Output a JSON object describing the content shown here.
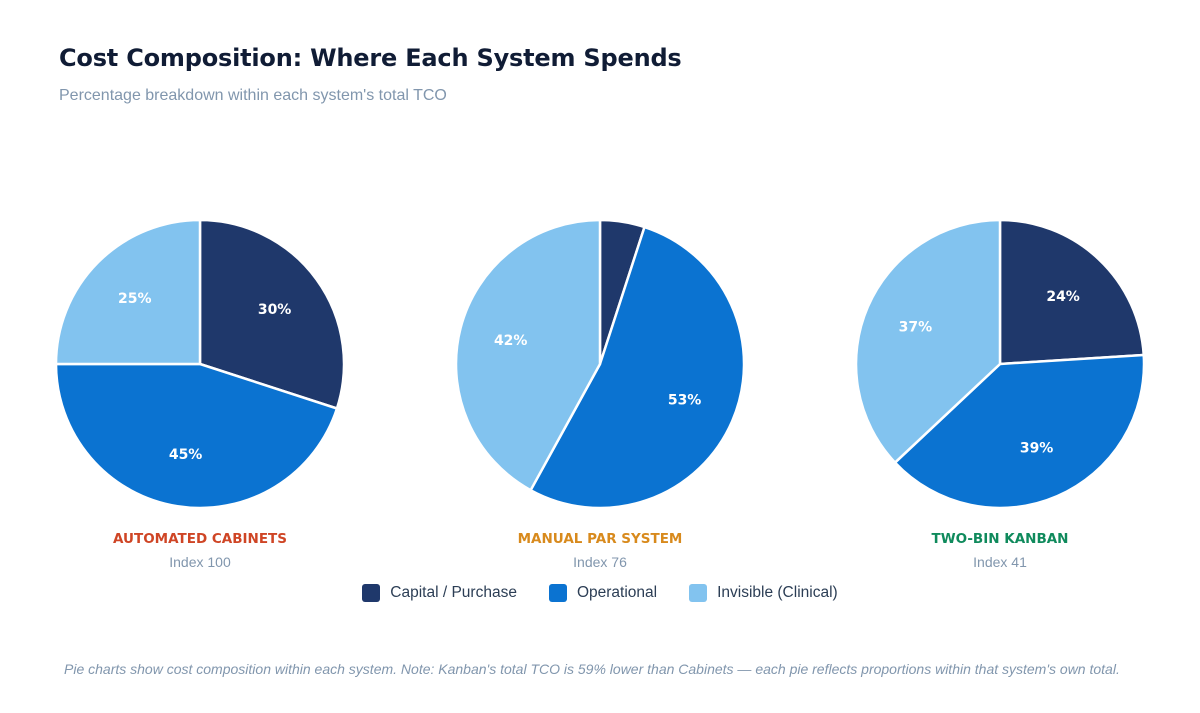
{
  "header": {
    "title": "Cost Composition: Where Each System Spends",
    "subtitle": "Percentage breakdown within each system's total TCO"
  },
  "colors": {
    "capital": "#1f386b",
    "operational": "#0b73d1",
    "invisible": "#82c3ef",
    "automated": "#cf4525",
    "manual": "#d88a1d",
    "kanban": "#0f8a5c"
  },
  "legend": [
    {
      "label": "Capital / Purchase",
      "color": "#1f386b"
    },
    {
      "label": "Operational",
      "color": "#0b73d1"
    },
    {
      "label": "Invisible (Clinical)",
      "color": "#82c3ef"
    }
  ],
  "chart_data": [
    {
      "type": "pie",
      "title": "AUTOMATED CABINETS",
      "subtitle": "Index 100",
      "title_color": "#cf4525",
      "categories": [
        "Capital / Purchase",
        "Operational",
        "Invisible (Clinical)"
      ],
      "values": [
        30,
        45,
        25
      ],
      "labels": [
        "30%",
        "45%",
        "25%"
      ]
    },
    {
      "type": "pie",
      "title": "MANUAL PAR SYSTEM",
      "subtitle": "Index 76",
      "title_color": "#d88a1d",
      "categories": [
        "Capital / Purchase",
        "Operational",
        "Invisible (Clinical)"
      ],
      "values": [
        5,
        53,
        42
      ],
      "labels": [
        "",
        "53%",
        "42%"
      ]
    },
    {
      "type": "pie",
      "title": "TWO-BIN KANBAN",
      "subtitle": "Index 41",
      "title_color": "#0f8a5c",
      "categories": [
        "Capital / Purchase",
        "Operational",
        "Invisible (Clinical)"
      ],
      "values": [
        24,
        39,
        37
      ],
      "labels": [
        "24%",
        "39%",
        "37%"
      ]
    }
  ],
  "footnote": "Pie charts show cost composition within each system. Note: Kanban's total TCO is 59% lower than Cabinets — each pie reflects proportions within that system's own total."
}
